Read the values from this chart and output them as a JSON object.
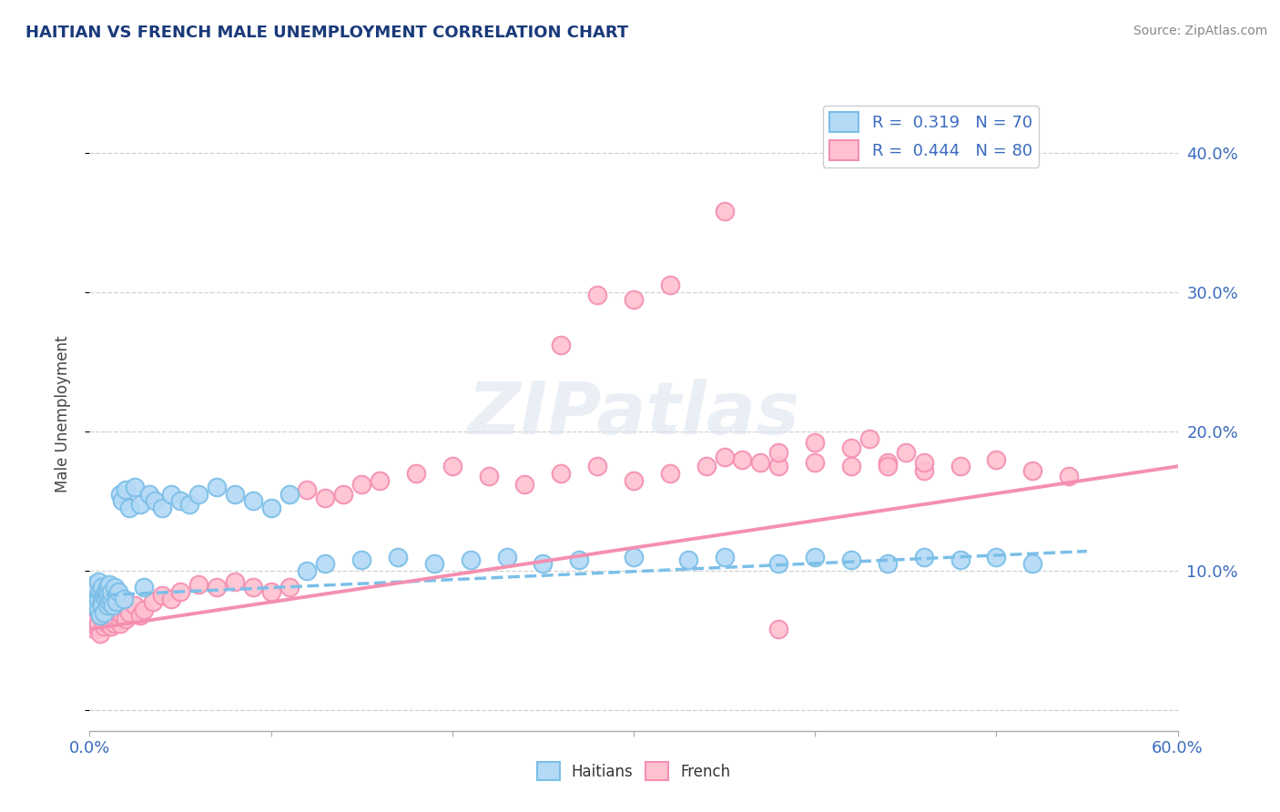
{
  "title": "HAITIAN VS FRENCH MALE UNEMPLOYMENT CORRELATION CHART",
  "source": "Source: ZipAtlas.com",
  "ylabel": "Male Unemployment",
  "yticks": [
    0.0,
    0.1,
    0.2,
    0.3,
    0.4
  ],
  "ytick_labels": [
    "",
    "10.0%",
    "20.0%",
    "30.0%",
    "40.0%"
  ],
  "xlim": [
    0.0,
    0.6
  ],
  "ylim": [
    -0.015,
    0.44
  ],
  "legend_r1": "R =  0.319   N = 70",
  "legend_r2": "R =  0.444   N = 80",
  "haitian_color": "#7bbfe8",
  "french_color": "#f48fb1",
  "haitian_color_fill": "#b3d9f5",
  "french_color_fill": "#ffc0d0",
  "title_color": "#1a3a7a",
  "background_color": "#ffffff",
  "haitian_scatter_x": [
    0.001,
    0.002,
    0.003,
    0.003,
    0.004,
    0.004,
    0.005,
    0.005,
    0.005,
    0.006,
    0.006,
    0.007,
    0.007,
    0.007,
    0.008,
    0.008,
    0.009,
    0.009,
    0.01,
    0.01,
    0.01,
    0.011,
    0.011,
    0.012,
    0.012,
    0.013,
    0.014,
    0.015,
    0.015,
    0.016,
    0.017,
    0.018,
    0.019,
    0.02,
    0.022,
    0.025,
    0.028,
    0.03,
    0.033,
    0.036,
    0.04,
    0.045,
    0.05,
    0.055,
    0.06,
    0.07,
    0.08,
    0.09,
    0.1,
    0.11,
    0.12,
    0.13,
    0.15,
    0.17,
    0.19,
    0.21,
    0.23,
    0.25,
    0.27,
    0.3,
    0.33,
    0.35,
    0.38,
    0.4,
    0.42,
    0.44,
    0.46,
    0.48,
    0.5,
    0.52
  ],
  "haitian_scatter_y": [
    0.085,
    0.082,
    0.078,
    0.09,
    0.075,
    0.088,
    0.072,
    0.08,
    0.092,
    0.068,
    0.085,
    0.078,
    0.088,
    0.075,
    0.082,
    0.07,
    0.085,
    0.08,
    0.075,
    0.088,
    0.082,
    0.078,
    0.09,
    0.08,
    0.085,
    0.075,
    0.088,
    0.082,
    0.078,
    0.085,
    0.155,
    0.15,
    0.08,
    0.158,
    0.145,
    0.16,
    0.148,
    0.088,
    0.155,
    0.15,
    0.145,
    0.155,
    0.15,
    0.148,
    0.155,
    0.16,
    0.155,
    0.15,
    0.145,
    0.155,
    0.1,
    0.105,
    0.108,
    0.11,
    0.105,
    0.108,
    0.11,
    0.105,
    0.108,
    0.11,
    0.108,
    0.11,
    0.105,
    0.11,
    0.108,
    0.105,
    0.11,
    0.108,
    0.11,
    0.105
  ],
  "french_scatter_x": [
    0.001,
    0.002,
    0.003,
    0.003,
    0.004,
    0.004,
    0.005,
    0.005,
    0.006,
    0.006,
    0.007,
    0.007,
    0.008,
    0.008,
    0.009,
    0.009,
    0.01,
    0.01,
    0.011,
    0.012,
    0.013,
    0.014,
    0.015,
    0.016,
    0.017,
    0.018,
    0.02,
    0.022,
    0.025,
    0.028,
    0.03,
    0.035,
    0.04,
    0.045,
    0.05,
    0.06,
    0.07,
    0.08,
    0.09,
    0.1,
    0.11,
    0.12,
    0.13,
    0.14,
    0.15,
    0.16,
    0.18,
    0.2,
    0.22,
    0.24,
    0.26,
    0.28,
    0.3,
    0.32,
    0.34,
    0.36,
    0.38,
    0.4,
    0.42,
    0.44,
    0.3,
    0.32,
    0.28,
    0.35,
    0.26,
    0.4,
    0.42,
    0.38,
    0.44,
    0.46,
    0.35,
    0.37,
    0.43,
    0.45,
    0.38,
    0.46,
    0.48,
    0.5,
    0.52,
    0.54
  ],
  "french_scatter_y": [
    0.065,
    0.062,
    0.068,
    0.058,
    0.065,
    0.06,
    0.07,
    0.062,
    0.068,
    0.055,
    0.065,
    0.072,
    0.06,
    0.068,
    0.065,
    0.07,
    0.062,
    0.068,
    0.065,
    0.06,
    0.068,
    0.062,
    0.065,
    0.07,
    0.062,
    0.068,
    0.065,
    0.07,
    0.075,
    0.068,
    0.072,
    0.078,
    0.082,
    0.08,
    0.085,
    0.09,
    0.088,
    0.092,
    0.088,
    0.085,
    0.088,
    0.158,
    0.152,
    0.155,
    0.162,
    0.165,
    0.17,
    0.175,
    0.168,
    0.162,
    0.17,
    0.175,
    0.165,
    0.17,
    0.175,
    0.18,
    0.175,
    0.178,
    0.175,
    0.178,
    0.295,
    0.305,
    0.298,
    0.358,
    0.262,
    0.192,
    0.188,
    0.185,
    0.175,
    0.172,
    0.182,
    0.178,
    0.195,
    0.185,
    0.058,
    0.178,
    0.175,
    0.18,
    0.172,
    0.168
  ],
  "haitian_trend_x": [
    0.0,
    0.55
  ],
  "haitian_trend_y": [
    0.082,
    0.114
  ],
  "french_trend_x": [
    0.0,
    0.6
  ],
  "french_trend_y": [
    0.058,
    0.175
  ]
}
